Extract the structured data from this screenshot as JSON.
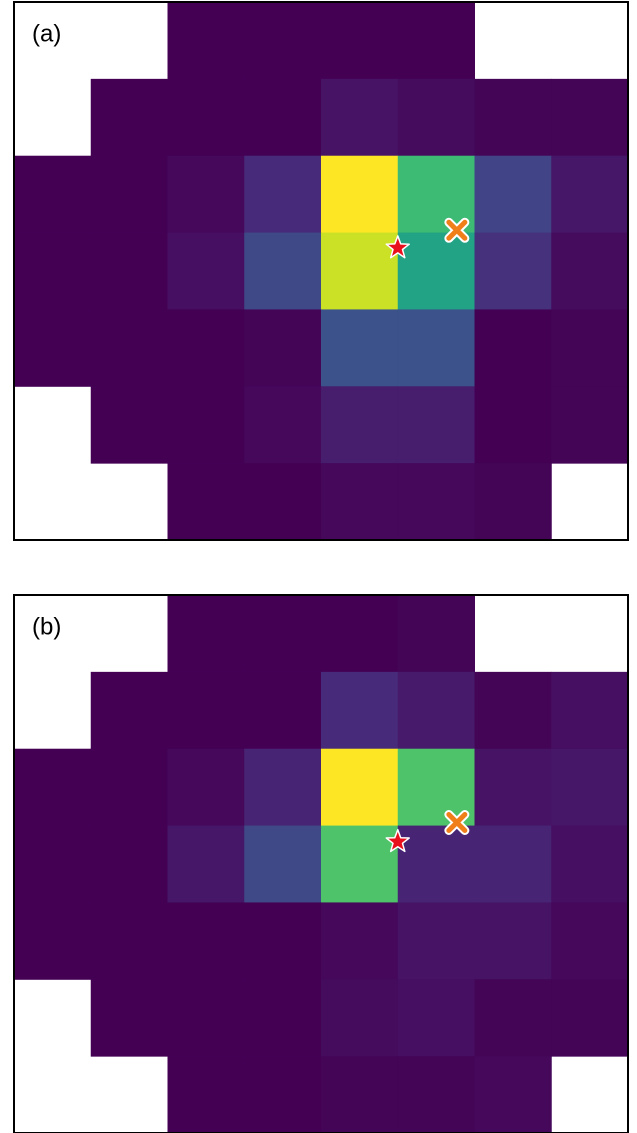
{
  "chart_data": [
    {
      "type": "heatmap",
      "title": "(a)",
      "xlim": [
        0,
        8
      ],
      "ylim": [
        7,
        0
      ],
      "colors": [
        "#440154",
        "#482475",
        "#414487",
        "#355f8d",
        "#2a788e",
        "#21918c",
        "#22a884",
        "#44bf70",
        "#7ad151",
        "#bddf26",
        "#fde725"
      ],
      "values": [
        [
          null,
          null,
          0.0,
          0.0,
          0.0,
          0.0,
          null,
          null
        ],
        [
          null,
          0.0,
          0.0,
          0.0,
          0.05,
          0.03,
          0.01,
          0.01
        ],
        [
          0.0,
          0.0,
          0.02,
          0.12,
          1.0,
          0.68,
          0.2,
          0.06
        ],
        [
          0.0,
          0.0,
          0.04,
          0.22,
          0.92,
          0.58,
          0.14,
          0.03
        ],
        [
          0.0,
          0.0,
          0.0,
          0.01,
          0.25,
          0.25,
          0.0,
          0.01
        ],
        [
          null,
          0.0,
          0.0,
          0.02,
          0.08,
          0.08,
          0.0,
          0.01
        ],
        [
          null,
          null,
          0.0,
          0.0,
          0.02,
          0.02,
          0.01,
          null
        ]
      ],
      "markers": [
        {
          "shape": "star",
          "color": "#e8101c",
          "x": 5.0,
          "y": 3.2
        },
        {
          "shape": "cross",
          "color": "#f07f1a",
          "x": 5.77,
          "y": 2.97
        }
      ]
    },
    {
      "type": "heatmap",
      "title": "(b)",
      "xlim": [
        0,
        8
      ],
      "ylim": [
        7,
        0
      ],
      "colors": [
        "#440154",
        "#482475",
        "#414487",
        "#355f8d",
        "#2a788e",
        "#21918c",
        "#22a884",
        "#44bf70",
        "#7ad151",
        "#bddf26",
        "#fde725"
      ],
      "values": [
        [
          null,
          null,
          0.0,
          0.0,
          0.0,
          0.01,
          null,
          null
        ],
        [
          null,
          0.0,
          0.0,
          0.0,
          0.12,
          0.07,
          0.01,
          0.04
        ],
        [
          0.0,
          0.0,
          0.02,
          0.1,
          1.0,
          0.72,
          0.05,
          0.06
        ],
        [
          0.0,
          0.0,
          0.06,
          0.22,
          0.72,
          0.1,
          0.1,
          0.04
        ],
        [
          0.0,
          0.0,
          0.0,
          0.0,
          0.02,
          0.05,
          0.05,
          0.02
        ],
        [
          null,
          0.0,
          0.0,
          0.0,
          0.03,
          0.04,
          0.01,
          0.01
        ],
        [
          null,
          null,
          0.0,
          0.0,
          0.01,
          0.01,
          0.02,
          null
        ]
      ],
      "markers": [
        {
          "shape": "star",
          "color": "#e8101c",
          "x": 5.0,
          "y": 3.21
        },
        {
          "shape": "cross",
          "color": "#f07f1a",
          "x": 5.77,
          "y": 2.96
        }
      ]
    }
  ]
}
